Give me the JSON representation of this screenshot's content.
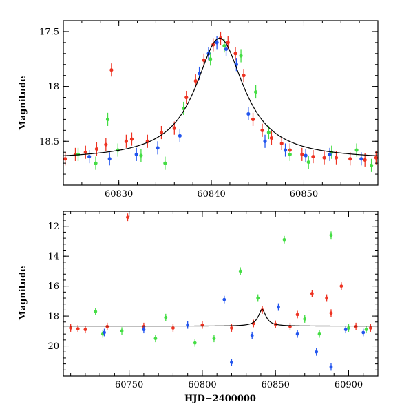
{
  "colors": {
    "red": "#ee3322",
    "green": "#44dd44",
    "blue": "#2255ee",
    "model": "#000000"
  },
  "chart_data": [
    {
      "type": "scatter",
      "title": "",
      "xlabel": "",
      "ylabel": "Magnitude",
      "xlim": [
        60824,
        60858
      ],
      "ylim": [
        18.9,
        17.4
      ],
      "y_inverted": true,
      "xticks": [
        60830,
        60840,
        60850
      ],
      "yticks": [
        17.5,
        18,
        18.5
      ],
      "xtick_labels": [
        "60830",
        "60840",
        "60850"
      ],
      "ytick_labels": [
        "17.5",
        "18",
        "18.5"
      ],
      "grid": false,
      "model_curve": {
        "baseline_mag": 18.67,
        "peak_mag": 17.56,
        "peak_time": 60840.9,
        "timescale_days": 3.2
      },
      "series": [
        {
          "color": "red",
          "points": [
            [
              60824.2,
              18.66
            ],
            [
              60825.3,
              18.62
            ],
            [
              60826.4,
              18.6
            ],
            [
              60827.6,
              18.57
            ],
            [
              60828.6,
              18.53
            ],
            [
              60829.2,
              17.85
            ],
            [
              60830.8,
              18.5
            ],
            [
              60831.4,
              18.48
            ],
            [
              60833.1,
              18.5
            ],
            [
              60834.6,
              18.42
            ],
            [
              60836.0,
              18.38
            ],
            [
              60837.3,
              18.1
            ],
            [
              60838.3,
              17.95
            ],
            [
              60839.2,
              17.76
            ],
            [
              60840.2,
              17.62
            ],
            [
              60841.0,
              17.56
            ],
            [
              60841.8,
              17.6
            ],
            [
              60842.6,
              17.7
            ],
            [
              60843.5,
              17.9
            ],
            [
              60844.5,
              18.3
            ],
            [
              60845.5,
              18.4
            ],
            [
              60846.5,
              18.47
            ],
            [
              60847.6,
              18.52
            ],
            [
              60848.5,
              18.58
            ],
            [
              60849.8,
              18.62
            ],
            [
              60851.0,
              18.64
            ],
            [
              60852.2,
              18.65
            ],
            [
              60853.5,
              18.65
            ],
            [
              60855.0,
              18.66
            ],
            [
              60856.6,
              18.67
            ],
            [
              60857.8,
              18.65
            ]
          ]
        },
        {
          "color": "green",
          "points": [
            [
              60825.6,
              18.62
            ],
            [
              60827.5,
              18.7
            ],
            [
              60828.8,
              18.3
            ],
            [
              60829.9,
              18.58
            ],
            [
              60832.4,
              18.63
            ],
            [
              60835.0,
              18.7
            ],
            [
              60837.0,
              18.2
            ],
            [
              60839.9,
              17.75
            ],
            [
              60841.4,
              17.63
            ],
            [
              60843.2,
              17.72
            ],
            [
              60844.8,
              18.05
            ],
            [
              60846.2,
              18.42
            ],
            [
              60848.5,
              18.62
            ],
            [
              60850.5,
              18.69
            ],
            [
              60853.0,
              18.6
            ],
            [
              60855.7,
              18.58
            ],
            [
              60857.3,
              18.72
            ]
          ]
        },
        {
          "color": "blue",
          "points": [
            [
              60826.8,
              18.64
            ],
            [
              60829.0,
              18.66
            ],
            [
              60831.9,
              18.62
            ],
            [
              60834.2,
              18.56
            ],
            [
              60836.6,
              18.45
            ],
            [
              60838.7,
              17.88
            ],
            [
              60839.7,
              17.7
            ],
            [
              60840.6,
              17.6
            ],
            [
              60841.6,
              17.66
            ],
            [
              60842.7,
              17.8
            ],
            [
              60844.0,
              18.25
            ],
            [
              60845.8,
              18.5
            ],
            [
              60848.0,
              18.58
            ],
            [
              60850.2,
              18.63
            ],
            [
              60852.8,
              18.62
            ],
            [
              60856.2,
              18.66
            ]
          ]
        }
      ]
    },
    {
      "type": "scatter",
      "title": "",
      "xlabel": "HJD−2400000",
      "ylabel": "Magnitude",
      "xlim": [
        60705,
        60920
      ],
      "ylim": [
        22,
        11
      ],
      "y_inverted": true,
      "xticks": [
        60750,
        60800,
        60850,
        60900
      ],
      "yticks": [
        12,
        14,
        16,
        18,
        20
      ],
      "xtick_labels": [
        "60750",
        "60800",
        "60850",
        "60900"
      ],
      "ytick_labels": [
        "12",
        "14",
        "16",
        "18",
        "20"
      ],
      "grid": false,
      "model_curve": {
        "baseline_mag": 18.67,
        "peak_mag": 17.56,
        "peak_time": 60840.9,
        "timescale_days": 3.2
      },
      "series": [
        {
          "color": "red",
          "points": [
            [
              60710,
              18.8
            ],
            [
              60715,
              18.85
            ],
            [
              60720,
              18.9
            ],
            [
              60735,
              18.7
            ],
            [
              60749,
              11.4
            ],
            [
              60760,
              18.7
            ],
            [
              60780,
              18.8
            ],
            [
              60800,
              18.6
            ],
            [
              60820,
              18.8
            ],
            [
              60835,
              18.5
            ],
            [
              60841,
              17.6
            ],
            [
              60850,
              18.55
            ],
            [
              60860,
              18.7
            ],
            [
              60865,
              17.9
            ],
            [
              60875,
              16.5
            ],
            [
              60885,
              16.8
            ],
            [
              60888,
              17.8
            ],
            [
              60895,
              16.0
            ],
            [
              60905,
              18.7
            ],
            [
              60915,
              18.8
            ]
          ]
        },
        {
          "color": "green",
          "points": [
            [
              60727,
              17.7
            ],
            [
              60732,
              19.2
            ],
            [
              60745,
              19.0
            ],
            [
              60768,
              19.5
            ],
            [
              60775,
              18.1
            ],
            [
              60795,
              19.8
            ],
            [
              60808,
              19.5
            ],
            [
              60826,
              15.0
            ],
            [
              60838,
              16.8
            ],
            [
              60856,
              12.9
            ],
            [
              60870,
              18.2
            ],
            [
              60880,
              19.2
            ],
            [
              60888,
              12.6
            ],
            [
              60900,
              18.8
            ],
            [
              60912,
              18.9
            ]
          ]
        },
        {
          "color": "blue",
          "points": [
            [
              60733,
              19.1
            ],
            [
              60760,
              18.9
            ],
            [
              60790,
              18.6
            ],
            [
              60815,
              16.9
            ],
            [
              60820,
              21.1
            ],
            [
              60834,
              19.3
            ],
            [
              60852,
              17.4
            ],
            [
              60865,
              19.2
            ],
            [
              60878,
              20.4
            ],
            [
              60888,
              21.4
            ],
            [
              60898,
              18.9
            ],
            [
              60910,
              19.1
            ]
          ]
        }
      ]
    }
  ]
}
